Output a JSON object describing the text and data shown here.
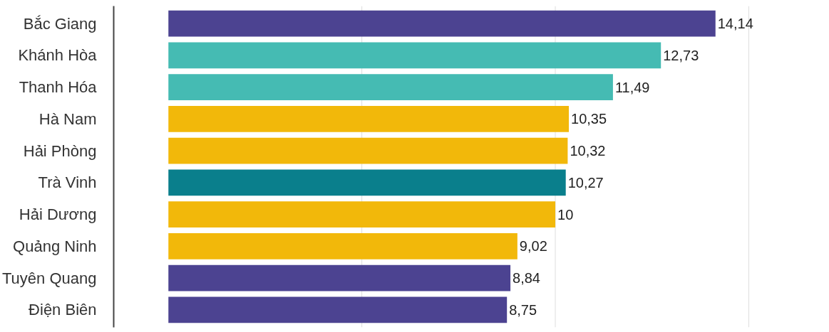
{
  "chart_data": {
    "type": "bar",
    "orientation": "horizontal",
    "categories": [
      "Bắc Giang",
      "Khánh Hòa",
      "Thanh Hóa",
      "Hà Nam",
      "Hải Phòng",
      "Trà Vinh",
      "Hải Dương",
      "Quảng Ninh",
      "Tuyên Quang",
      "Điện Biên"
    ],
    "values": [
      14.14,
      12.73,
      11.49,
      10.35,
      10.32,
      10.27,
      10,
      9.02,
      8.84,
      8.75
    ],
    "value_labels": [
      "14,14",
      "12,73",
      "11,49",
      "10,35",
      "10,32",
      "10,27",
      "10",
      "9,02",
      "8,84",
      "8,75"
    ],
    "colors": [
      "#4c4391",
      "#45bbb3",
      "#45bbb3",
      "#f2b80a",
      "#f2b80a",
      "#0a7f8c",
      "#f2b80a",
      "#f2b80a",
      "#4c4391",
      "#4c4391"
    ],
    "ref_lines": [
      {
        "axis": "x",
        "value": 5,
        "color": "#dddddd"
      },
      {
        "axis": "x",
        "value": 10,
        "color": "#dddddd"
      },
      {
        "axis": "x",
        "value": 15,
        "color": "#dddddd"
      }
    ],
    "tick_labels": "y"
  }
}
